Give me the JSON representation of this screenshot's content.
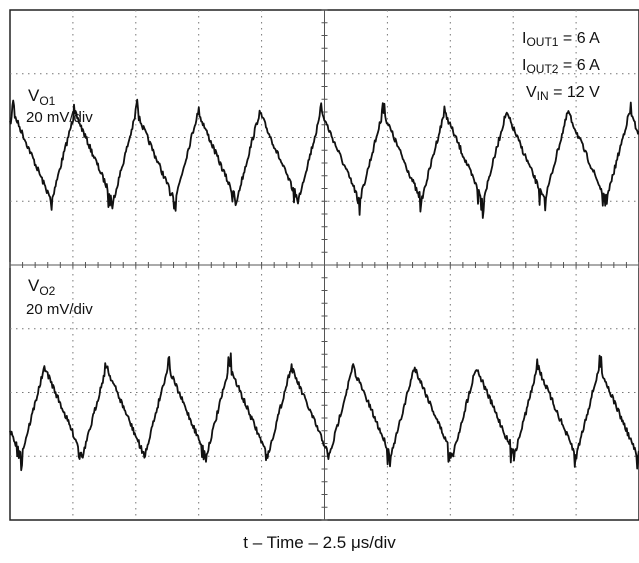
{
  "chart_data": {
    "type": "line",
    "xlabel": "t – Time – 2.5 μs/div",
    "x_divisions": 10,
    "y_divisions": 8,
    "period_divisions": 0.98,
    "grid": true,
    "channels": [
      {
        "name": "V",
        "subscript": "O1",
        "scale": "20 mV/div",
        "peak_phase_divisions": 0.05,
        "peak_to_peak_divisions": 1.4
      },
      {
        "name": "V",
        "subscript": "O2",
        "scale": "20 mV/div",
        "peak_phase_divisions": 0.55,
        "peak_to_peak_divisions": 1.4
      }
    ],
    "annotations": [
      {
        "main": "I",
        "sub": "OUT1",
        "rest": " = 6 A"
      },
      {
        "main": "I",
        "sub": "OUT2",
        "rest": " = 6 A"
      },
      {
        "main": "V",
        "sub": "IN",
        "rest": " = 12 V"
      }
    ]
  }
}
